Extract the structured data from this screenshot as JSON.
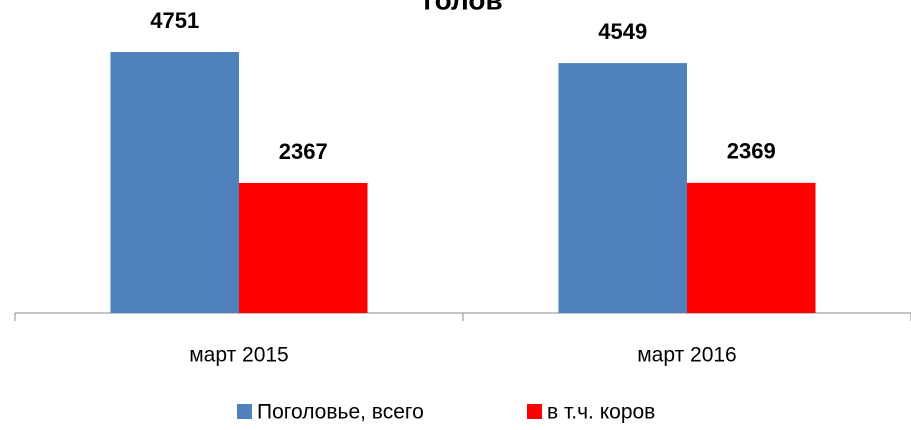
{
  "chart_data": {
    "type": "bar",
    "title": "голов",
    "categories": [
      "март 2015",
      "март 2016"
    ],
    "series": [
      {
        "name": "Поголовье, всего",
        "color": "#4f81bd",
        "values": [
          4751,
          4549
        ]
      },
      {
        "name": "в т.ч. коров",
        "color": "#ff0000",
        "values": [
          2367,
          2369
        ]
      }
    ]
  }
}
